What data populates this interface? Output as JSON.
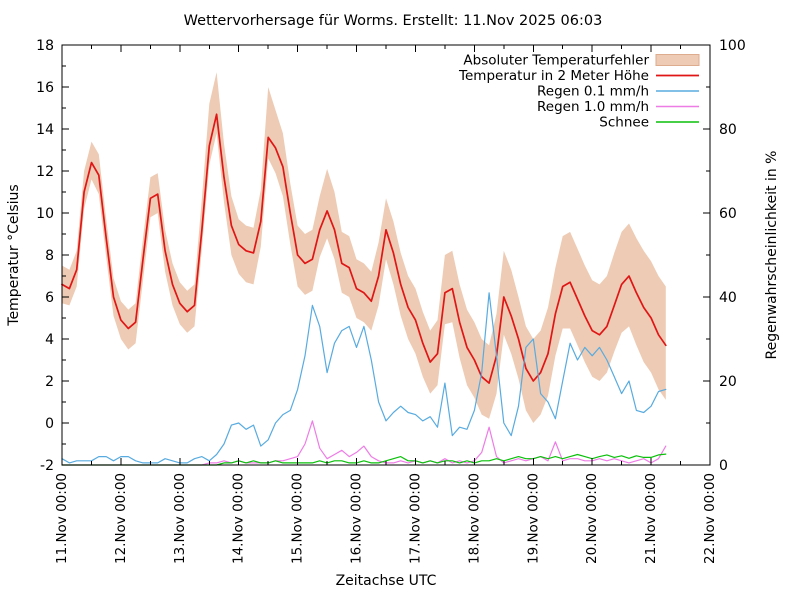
{
  "title": "Wettervorhersage für Worms. Erstellt: 11.Nov 2025 06:03",
  "chart_data": {
    "type": "line",
    "title": "Wettervorhersage für Worms. Erstellt: 11.Nov 2025 06:03",
    "x_axis": {
      "label": "Zeitachse UTC",
      "tick_labels": [
        "11.Nov 00:00",
        "12.Nov 00:00",
        "13.Nov 00:00",
        "14.Nov 00:00",
        "15.Nov 00:00",
        "16.Nov 00:00",
        "17.Nov 00:00",
        "18.Nov 00:00",
        "19.Nov 00:00",
        "20.Nov 00:00",
        "21.Nov 00:00",
        "22.Nov 00:00"
      ],
      "range_days": [
        0,
        11
      ],
      "minor_step_days": 0.5
    },
    "y_axis_left": {
      "label": "Temperatur °Celsius",
      "min": -2,
      "max": 18,
      "major_step": 2,
      "minor_step": 1,
      "tick_labels": [
        "-2",
        "0",
        "2",
        "4",
        "6",
        "8",
        "10",
        "12",
        "14",
        "16",
        "18"
      ]
    },
    "y_axis_right": {
      "label": "Regenwahrscheinlichkeit in %",
      "min": 0,
      "max": 100,
      "major_step": 20,
      "minor_step": 10,
      "tick_labels": [
        "0",
        "20",
        "40",
        "60",
        "80",
        "100"
      ]
    },
    "grid": false,
    "legend_position": "top-right-inside",
    "legend": [
      {
        "label": "Absoluter Temperaturfehler",
        "key": "band",
        "swatch": "band"
      },
      {
        "label": "Temperatur in 2 Meter Höhe",
        "key": "temperature",
        "swatch": "line"
      },
      {
        "label": "Regen 0.1 mm/h",
        "key": "rain01",
        "swatch": "line"
      },
      {
        "label": "Regen 1.0 mm/h",
        "key": "rain10",
        "swatch": "line"
      },
      {
        "label": "Schnee",
        "key": "snow",
        "swatch": "line"
      }
    ],
    "colors": {
      "band": "#eecbb4",
      "band_border": "#ddab8e",
      "temperature": "#e01515",
      "rain01": "#58abe0",
      "rain10": "#ee7ce6",
      "snow": "#0ac00a",
      "text": "#000000",
      "frame": "#000000"
    },
    "sample_interval_hours": 3,
    "start": "11.Nov 00:00 UTC",
    "end": "21.Nov 06:00 UTC",
    "series": {
      "temperature_c": [
        6.6,
        6.4,
        7.3,
        11.0,
        12.4,
        11.8,
        8.8,
        6.0,
        4.9,
        4.5,
        4.8,
        7.8,
        10.7,
        10.9,
        8.2,
        6.6,
        5.7,
        5.3,
        5.6,
        9.2,
        13.2,
        14.7,
        11.7,
        9.4,
        8.5,
        8.2,
        8.1,
        9.6,
        13.6,
        13.1,
        12.2,
        10.0,
        8.0,
        7.6,
        7.8,
        9.2,
        10.1,
        9.2,
        7.6,
        7.4,
        6.4,
        6.2,
        5.8,
        7.0,
        9.2,
        8.1,
        6.6,
        5.5,
        4.9,
        3.8,
        2.9,
        3.3,
        6.2,
        6.4,
        4.8,
        3.6,
        3.0,
        2.2,
        1.9,
        3.2,
        6.0,
        5.1,
        4.0,
        2.6,
        2.0,
        2.4,
        3.3,
        5.2,
        6.5,
        6.7,
        5.9,
        5.1,
        4.4,
        4.2,
        4.6,
        5.6,
        6.6,
        7.0,
        6.2,
        5.5,
        5.0,
        4.2,
        3.7
      ],
      "temp_band_upper_c": [
        7.5,
        7.3,
        8.2,
        12.0,
        13.4,
        12.8,
        9.7,
        6.9,
        5.8,
        5.4,
        5.7,
        8.8,
        11.7,
        11.9,
        9.2,
        7.6,
        6.7,
        6.3,
        6.6,
        10.7,
        15.2,
        16.7,
        13.3,
        10.8,
        9.7,
        9.4,
        9.3,
        11.1,
        16.0,
        14.9,
        13.8,
        11.4,
        9.4,
        9.0,
        9.2,
        10.8,
        12.1,
        11.0,
        9.1,
        8.9,
        7.8,
        7.6,
        7.2,
        8.6,
        10.7,
        9.6,
        8.1,
        7.0,
        6.4,
        5.3,
        4.4,
        4.9,
        8.0,
        8.2,
        6.6,
        5.4,
        4.8,
        4.0,
        3.7,
        5.2,
        8.2,
        7.3,
        6.0,
        4.6,
        4.0,
        4.4,
        5.5,
        7.4,
        8.9,
        9.1,
        8.3,
        7.5,
        6.8,
        6.6,
        7.0,
        8.1,
        9.1,
        9.5,
        8.8,
        8.2,
        7.7,
        7.0,
        6.5
      ],
      "temp_band_lower_c": [
        5.7,
        5.6,
        6.5,
        10.2,
        11.6,
        10.9,
        7.9,
        5.1,
        4.0,
        3.5,
        3.8,
        6.8,
        9.8,
        10.0,
        7.2,
        5.6,
        4.7,
        4.3,
        4.6,
        8.3,
        12.3,
        13.8,
        10.5,
        8.0,
        7.1,
        6.7,
        6.6,
        8.4,
        12.6,
        11.9,
        10.8,
        8.5,
        6.5,
        6.1,
        6.3,
        7.9,
        8.8,
        7.8,
        6.2,
        6.0,
        5.0,
        4.8,
        4.4,
        5.6,
        7.8,
        6.6,
        5.1,
        4.0,
        3.3,
        2.2,
        1.4,
        1.8,
        4.7,
        4.8,
        3.1,
        1.8,
        1.2,
        0.4,
        0.2,
        1.4,
        4.2,
        3.3,
        2.1,
        0.6,
        0.0,
        0.4,
        1.3,
        3.2,
        4.5,
        4.5,
        3.7,
        2.9,
        2.2,
        2.0,
        2.4,
        3.4,
        4.3,
        4.6,
        3.7,
        2.9,
        2.4,
        1.6,
        1.1
      ],
      "rain_01mmh_pct": [
        1.5,
        0.5,
        1.0,
        1.0,
        1.0,
        2.0,
        2.0,
        1.0,
        2.0,
        2.0,
        1.0,
        0.5,
        0.5,
        0.5,
        1.5,
        1.0,
        0.5,
        0.5,
        1.5,
        2.0,
        1.0,
        2.5,
        5.0,
        9.5,
        10.0,
        8.5,
        9.5,
        4.5,
        6.0,
        10.0,
        12.0,
        13.0,
        18.0,
        26.0,
        38.0,
        33.0,
        22.0,
        29.0,
        32.0,
        33.0,
        28.0,
        33.0,
        25.0,
        15.0,
        10.5,
        12.5,
        14.0,
        12.5,
        12.0,
        10.5,
        11.5,
        9.0,
        19.5,
        7.0,
        9.0,
        8.5,
        13.0,
        22.0,
        41.0,
        26.0,
        10.0,
        7.0,
        14.0,
        28.0,
        30.0,
        17.0,
        15.0,
        11.0,
        20.0,
        29.0,
        25.0,
        28.0,
        26.0,
        28.0,
        25.0,
        21.0,
        17.0,
        20.0,
        13.0,
        12.5,
        14.0,
        17.5,
        18.0
      ],
      "rain_10mmh_pct": [
        0,
        0,
        0,
        0,
        0,
        0,
        0,
        0,
        0,
        0,
        0,
        0,
        0,
        0,
        0,
        0,
        0,
        0,
        0,
        0,
        0.5,
        0.5,
        1.0,
        0.5,
        1.0,
        0.5,
        0.5,
        0.5,
        0.5,
        1.0,
        1.0,
        1.5,
        2.0,
        5.0,
        10.5,
        4.0,
        1.5,
        2.5,
        3.5,
        2.0,
        3.0,
        4.5,
        2.0,
        1.0,
        0.5,
        0.5,
        1.0,
        0.5,
        1.0,
        0.5,
        1.0,
        0.5,
        1.5,
        0.5,
        1.0,
        0.5,
        1.0,
        3.0,
        9.0,
        2.0,
        0.5,
        1.0,
        1.5,
        1.0,
        1.5,
        2.0,
        1.0,
        5.5,
        1.0,
        1.5,
        1.5,
        1.0,
        1.0,
        1.5,
        1.0,
        1.5,
        1.0,
        0.5,
        1.0,
        1.5,
        0.5,
        1.5,
        4.5
      ],
      "snow_pct": [
        0,
        0,
        0,
        0,
        0,
        0,
        0,
        0,
        0,
        0,
        0,
        0,
        0,
        0,
        0,
        0,
        0,
        0,
        0,
        0,
        0,
        0,
        0.5,
        0.5,
        1.0,
        0.5,
        1.0,
        0.5,
        0.5,
        1.0,
        0.5,
        0.5,
        0.5,
        0.5,
        0.5,
        1.0,
        0.5,
        1.0,
        1.0,
        0.5,
        0.5,
        1.0,
        0.5,
        0.5,
        1.0,
        1.5,
        2.0,
        1.0,
        1.0,
        0.5,
        1.0,
        0.5,
        1.0,
        1.0,
        0.5,
        1.0,
        0.5,
        1.0,
        1.0,
        1.5,
        1.0,
        1.5,
        2.0,
        1.5,
        1.5,
        2.0,
        1.5,
        2.0,
        1.5,
        2.0,
        2.5,
        2.0,
        1.5,
        2.0,
        2.4,
        1.8,
        2.2,
        1.6,
        2.2,
        1.8,
        1.8,
        2.4,
        2.6
      ]
    }
  }
}
